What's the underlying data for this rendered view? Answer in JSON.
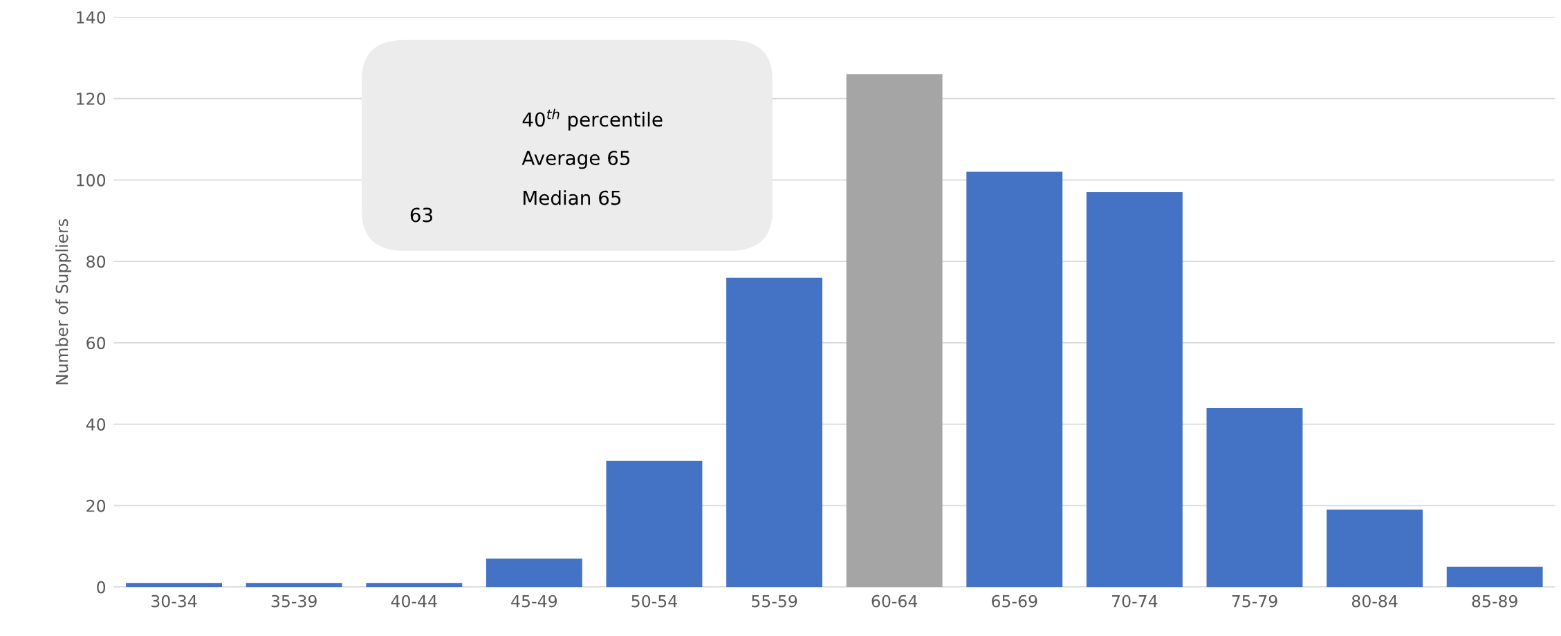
{
  "chart_data": {
    "type": "bar",
    "ylabel": "Number of Suppliers",
    "categories": [
      "30-34",
      "35-39",
      "40-44",
      "45-49",
      "50-54",
      "55-59",
      "60-64",
      "65-69",
      "70-74",
      "75-79",
      "80-84",
      "85-89"
    ],
    "values": [
      1,
      1,
      1,
      7,
      31,
      76,
      126,
      102,
      97,
      44,
      19,
      5
    ],
    "colors": [
      "#4472c4",
      "#4472c4",
      "#4472c4",
      "#4472c4",
      "#4472c4",
      "#4472c4",
      "#a5a5a5",
      "#4472c4",
      "#4472c4",
      "#4472c4",
      "#4472c4",
      "#4472c4"
    ],
    "ylim": [
      0,
      140
    ],
    "yticks": [
      0,
      20,
      40,
      60,
      80,
      100,
      120,
      140
    ],
    "grid": "y",
    "annotations": [
      "63",
      "40$^{th}$ percentile",
      "Average 65",
      "Median 65"
    ]
  }
}
